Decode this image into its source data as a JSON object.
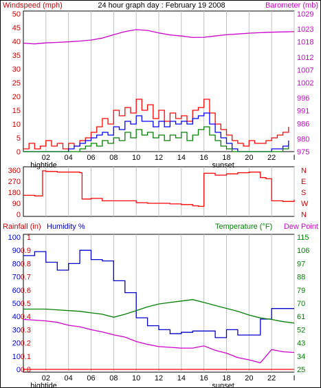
{
  "title": "24 hour graph day : February 19 2008",
  "colors": {
    "wind": "#ff0000",
    "wind_avg": "#0000ff",
    "wind_min": "#008000",
    "baro": "#cc00cc",
    "dir": "#ff0000",
    "rain_axis": "#cc0000",
    "humidity": "#0000cc",
    "temp": "#008000",
    "dew": "#cc00cc",
    "rain": "#ff0000",
    "grid": "#c0c0c0"
  },
  "chart_data": [
    {
      "type": "line",
      "name": "wind-barometer",
      "ylabel_left": "Windspeed (mph)",
      "ylabel_right": "Barometer (mb)",
      "x_ticks": [
        "02",
        "04",
        "06",
        "08",
        "10",
        "12",
        "14",
        "16",
        "18",
        "20",
        "22",
        "I"
      ],
      "markers": [
        {
          "label": "hightide",
          "x": 1.8
        },
        {
          "label": "sunset",
          "x": 17.7
        }
      ],
      "y_ticks_left": [
        0,
        5,
        10,
        15,
        20,
        25,
        30,
        35,
        40,
        45,
        50
      ],
      "y_ticks_right": [
        975,
        980,
        986,
        991,
        996,
        1002,
        1007,
        1012,
        1018,
        1023,
        1029
      ],
      "ylim_left": [
        0,
        50
      ],
      "ylim_right": [
        975,
        1029
      ],
      "series": [
        {
          "name": "gust",
          "axis": "left",
          "x": [
            0,
            0.5,
            1,
            1.5,
            2,
            2.5,
            3,
            3.5,
            4,
            4.5,
            5,
            5.5,
            6,
            6.5,
            7,
            7.5,
            8,
            8.5,
            9,
            9.5,
            10,
            10.5,
            11,
            11.5,
            12,
            12.5,
            13,
            13.5,
            14,
            14.5,
            15,
            15.5,
            16,
            16.5,
            17,
            17.5,
            18,
            18.5,
            19,
            19.5,
            20,
            20.5,
            21,
            21.5,
            22,
            22.5,
            23,
            23.5
          ],
          "values": [
            1,
            3,
            1,
            2,
            4,
            2,
            3,
            1,
            3,
            2,
            4,
            5,
            7,
            9,
            12,
            10,
            15,
            13,
            16,
            14,
            19,
            15,
            17,
            12,
            15,
            11,
            14,
            12,
            13,
            11,
            15,
            16,
            19,
            14,
            10,
            8,
            6,
            4,
            3,
            2,
            4,
            3,
            3,
            4,
            5,
            6,
            7,
            9
          ]
        },
        {
          "name": "average",
          "axis": "left",
          "x": [
            0,
            0.5,
            1,
            1.5,
            2,
            2.5,
            3,
            3.5,
            4,
            4.5,
            5,
            5.5,
            6,
            6.5,
            7,
            7.5,
            8,
            8.5,
            9,
            9.5,
            10,
            10.5,
            11,
            11.5,
            12,
            12.5,
            13,
            13.5,
            14,
            14.5,
            15,
            15.5,
            16,
            16.5,
            17,
            17.5,
            18,
            18.5,
            19,
            19.5,
            20,
            20.5,
            21,
            21.5,
            22,
            22.5,
            23,
            23.5
          ],
          "values": [
            0,
            0,
            0,
            0,
            0,
            0,
            0,
            0,
            1,
            2,
            3,
            4,
            5,
            6,
            7,
            6,
            9,
            8,
            11,
            10,
            13,
            11,
            11,
            9,
            11,
            9,
            11,
            10,
            11,
            10,
            12,
            13,
            14,
            10,
            7,
            5,
            3,
            1,
            0,
            0,
            0,
            0,
            0,
            0,
            1,
            1,
            2,
            4
          ]
        },
        {
          "name": "minimum",
          "axis": "left",
          "x": [
            0,
            0.5,
            1,
            1.5,
            2,
            2.5,
            3,
            3.5,
            4,
            4.5,
            5,
            5.5,
            6,
            6.5,
            7,
            7.5,
            8,
            8.5,
            9,
            9.5,
            10,
            10.5,
            11,
            11.5,
            12,
            12.5,
            13,
            13.5,
            14,
            14.5,
            15,
            15.5,
            16,
            16.5,
            17,
            17.5,
            18,
            18.5,
            19,
            19.5,
            20,
            20.5,
            21,
            21.5,
            22,
            22.5,
            23,
            23.5
          ],
          "values": [
            0,
            0,
            0,
            0,
            0,
            0,
            0,
            0,
            0,
            0,
            1,
            2,
            3,
            2,
            4,
            3,
            5,
            4,
            7,
            5,
            8,
            6,
            7,
            5,
            6,
            4,
            6,
            5,
            7,
            4,
            6,
            8,
            9,
            6,
            4,
            2,
            1,
            0,
            0,
            0,
            0,
            0,
            0,
            0,
            0,
            0,
            1,
            2
          ]
        },
        {
          "name": "barometer",
          "axis": "right",
          "x": [
            0,
            1,
            2,
            3,
            4,
            5,
            6,
            7,
            8,
            9,
            10,
            11,
            12,
            13,
            14,
            15,
            16,
            17,
            18,
            19,
            20,
            21,
            22,
            23,
            24
          ],
          "values": [
            1017.5,
            1017.2,
            1017.6,
            1017.8,
            1018,
            1018.3,
            1018.7,
            1019.5,
            1020.8,
            1022,
            1022.8,
            1022.5,
            1021.5,
            1020.7,
            1020.3,
            1019.7,
            1019.8,
            1020.3,
            1020.8,
            1021.1,
            1021.4,
            1021.6,
            1021.8,
            1021.9,
            1022
          ]
        }
      ]
    },
    {
      "type": "line",
      "name": "wind-direction",
      "y_ticks_left": [
        0,
        90,
        180,
        270,
        360
      ],
      "y_ticks_right": [
        "N",
        "W",
        "S",
        "E",
        "N"
      ],
      "ylim": [
        0,
        360
      ],
      "x": [
        0,
        1,
        1.5,
        1.7,
        2,
        3,
        4,
        5,
        5.2,
        6,
        7,
        8,
        9,
        10,
        11,
        12,
        13,
        14,
        15,
        15.5,
        16,
        17,
        18,
        19,
        20,
        21,
        21.5,
        22,
        23,
        24
      ],
      "values": [
        155,
        150,
        150,
        355,
        350,
        345,
        345,
        340,
        125,
        130,
        110,
        110,
        110,
        95,
        90,
        90,
        85,
        80,
        70,
        65,
        335,
        320,
        330,
        340,
        345,
        300,
        290,
        110,
        105,
        120
      ]
    },
    {
      "type": "line",
      "name": "rain-humidity-temperature",
      "ylabel_left_1": "Rainfall (in)",
      "ylabel_left_2": "Humidity %",
      "ylabel_right_1": "Temperature (°F)",
      "ylabel_right_2": "Dew Point",
      "y_ticks_rain": [
        "0.0",
        "0.1",
        "0.2",
        "0.3",
        "0.4",
        "0.5",
        "0.6",
        "0.7",
        "0.8",
        "0.9",
        "1"
      ],
      "y_ticks_humidity": [
        "0",
        "10",
        "20",
        "30",
        "40",
        "50",
        "60",
        "70",
        "80",
        "90",
        "100"
      ],
      "y_ticks_temp": [
        "25",
        "34",
        "43",
        "52",
        "61",
        "70",
        "79",
        "88",
        "97",
        "106",
        "115"
      ],
      "ylim_humidity": [
        0,
        100
      ],
      "ylim_temp": [
        25,
        115
      ],
      "series": [
        {
          "name": "humidity",
          "axis": "humidity",
          "x": [
            0,
            1,
            2,
            3,
            4,
            5,
            6,
            7,
            8,
            9,
            10,
            11,
            12,
            13,
            14,
            15,
            16,
            17,
            18,
            19,
            20,
            21,
            22,
            23,
            24
          ],
          "values": [
            86,
            89,
            81,
            75,
            80,
            90,
            83,
            82,
            67,
            58,
            39,
            33,
            30,
            27,
            28,
            29,
            29,
            24,
            30,
            26,
            26,
            38,
            46,
            46,
            46
          ]
        },
        {
          "name": "temperature",
          "axis": "temp",
          "x": [
            0,
            1,
            2,
            3,
            4,
            5,
            6,
            7,
            8,
            9,
            10,
            11,
            12,
            13,
            14,
            15,
            16,
            17,
            18,
            19,
            20,
            21,
            22,
            23,
            24
          ],
          "values": [
            66,
            66,
            66,
            65.5,
            65,
            64.5,
            63.5,
            62.5,
            60.5,
            62.5,
            65,
            67.5,
            69.5,
            70.5,
            71.5,
            72.5,
            70.5,
            68.5,
            66.5,
            64.5,
            62,
            60,
            59,
            57.5,
            56.5
          ]
        },
        {
          "name": "dew-point",
          "axis": "temp",
          "x": [
            0,
            1,
            2,
            3,
            4,
            5,
            6,
            7,
            8,
            9,
            10,
            11,
            12,
            13,
            14,
            15,
            16,
            17,
            18,
            19,
            20,
            21,
            22,
            23,
            24
          ],
          "values": [
            59,
            58.5,
            58,
            57,
            55,
            54,
            52,
            50.5,
            48.5,
            47,
            44,
            42,
            40.5,
            40,
            39.5,
            39.5,
            41,
            38,
            36,
            33,
            31.5,
            29.5,
            38.5,
            37,
            36.5
          ]
        },
        {
          "name": "rainfall",
          "axis": "rain",
          "x": [
            0,
            24
          ],
          "values": [
            0,
            0
          ]
        }
      ]
    }
  ]
}
